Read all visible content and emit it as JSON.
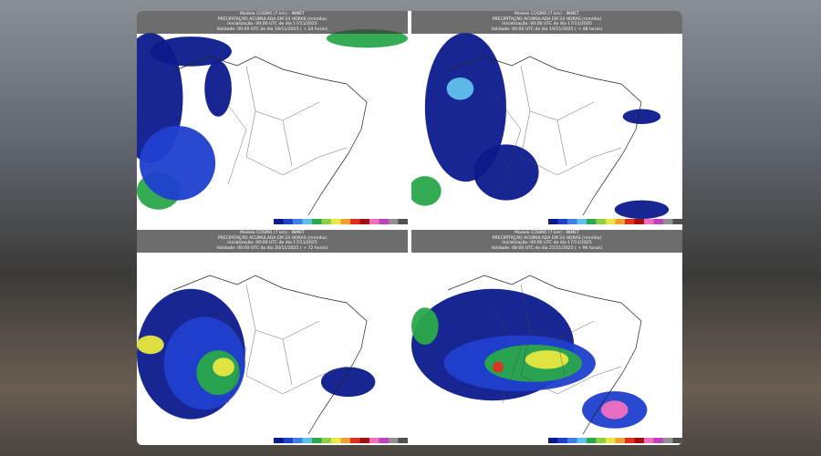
{
  "panels": [
    {
      "lines": [
        "Modelo COSMO (7 km) - INMET",
        "PRECIPITAÇÃO ACUMULADA EM 24 HORAS (mm/dia)",
        "Inicialização: 00:00 UTC do dia 17/11/2025",
        "Validade: 00:00 UTC do dia 18/11/2025 ( + 24 horas)"
      ]
    },
    {
      "lines": [
        "Modelo COSMO (7 km) - INMET",
        "PRECIPITAÇÃO ACUMULADA EM 24 HORAS (mm/dia)",
        "Inicialização: 00:00 UTC do dia 17/11/2025",
        "Validade: 00:00 UTC do dia 19/11/2025 ( + 48 horas)"
      ]
    },
    {
      "lines": [
        "Modelo COSMO (7 km) - INMET",
        "PRECIPITAÇÃO ACUMULADA EM 24 HORAS (mm/dia)",
        "Inicialização: 00:00 UTC do dia 17/11/2025",
        "Validade: 00:00 UTC do dia 20/11/2025 ( + 72 horas)"
      ]
    },
    {
      "lines": [
        "Modelo COSMO (7 km) - INMET",
        "PRECIPITAÇÃO ACUMULADA EM 24 HORAS (mm/dia)",
        "Inicialização: 00:00 UTC do dia 17/11/2025",
        "Validade: 00:00 UTC do dia 21/11/2025 ( + 96 horas)"
      ]
    }
  ]
}
